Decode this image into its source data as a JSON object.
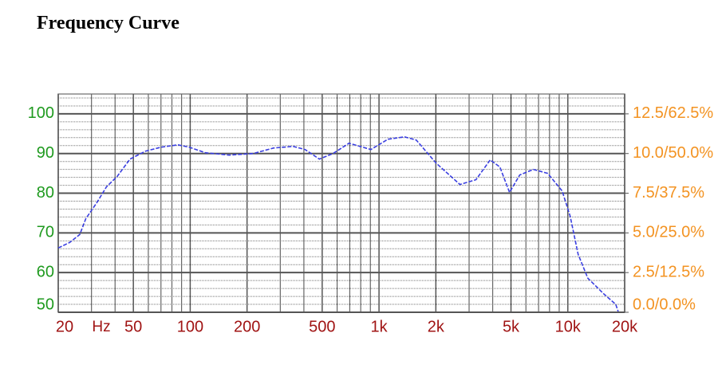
{
  "chart_data": {
    "type": "line",
    "title": "Frequency Curve",
    "x_label": "Hz",
    "log_x": true,
    "grid": true,
    "xlim": [
      20,
      20000
    ],
    "xticks": [
      20,
      50,
      100,
      200,
      500,
      {
        "value": 1000,
        "label": "1k"
      },
      {
        "value": 2000,
        "label": "2k"
      },
      {
        "value": 5000,
        "label": "5k"
      },
      {
        "value": 10000,
        "label": "10k"
      },
      {
        "value": 20000,
        "label": "20k"
      }
    ],
    "x_minor_ticks": [
      30,
      40,
      60,
      70,
      80,
      90,
      300,
      400,
      600,
      700,
      800,
      900,
      3000,
      4000,
      6000,
      7000,
      8000,
      9000
    ],
    "ylim": [
      50,
      105
    ],
    "yticks": [
      50,
      60,
      70,
      80,
      90,
      100
    ],
    "y_minor_ticks": [
      52,
      54,
      56,
      58,
      62,
      64,
      66,
      68,
      72,
      74,
      76,
      78,
      82,
      84,
      86,
      88,
      92,
      94,
      96,
      98,
      102,
      104
    ],
    "y2lim": [
      0,
      13.75
    ],
    "y2ticks": [
      {
        "value": 0,
        "label": "0.0/0.0%"
      },
      {
        "value": 2.5,
        "label": "2.5/12.5%"
      },
      {
        "value": 5,
        "label": "5.0/25.0%"
      },
      {
        "value": 7.5,
        "label": "7.5/37.5%"
      },
      {
        "value": 10,
        "label": "10.0/50.0%"
      },
      {
        "value": 12.5,
        "label": "12.5/62.5%"
      }
    ],
    "series": [
      {
        "color": "#3a3fe0",
        "x": [
          20,
          23,
          26,
          28,
          32,
          36,
          41,
          48,
          58,
          70,
          86,
          99,
          120,
          161,
          216,
          276,
          351,
          406,
          483,
          571,
          694,
          906,
          1115,
          1364,
          1576,
          2005,
          2681,
          3262,
          3882,
          4367,
          4912,
          5563,
          6565,
          7824,
          9331,
          10289,
          11346,
          12758,
          15527,
          17940,
          18480
        ],
        "values": [
          66.2,
          67.6,
          69.6,
          73.6,
          77.6,
          81.6,
          84.2,
          88.6,
          90.6,
          91.6,
          92.2,
          91.6,
          90.2,
          89.6,
          90.0,
          91.4,
          91.8,
          91.0,
          88.6,
          90.0,
          92.6,
          91.0,
          93.6,
          94.2,
          93.4,
          87.6,
          82.2,
          83.4,
          88.4,
          86.6,
          80.2,
          84.6,
          86.0,
          85.0,
          80.6,
          74.2,
          64.6,
          58.6,
          54.6,
          52.0,
          50.2
        ]
      }
    ]
  }
}
